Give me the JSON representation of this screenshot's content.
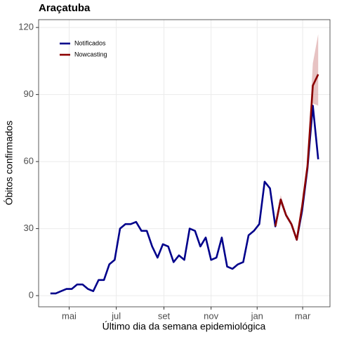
{
  "chart_data": {
    "type": "line",
    "title": "Araçatuba",
    "xlabel": "Último dia da semana epidemiológica",
    "ylabel": "Óbitos confirmados",
    "x": [
      0,
      1,
      2,
      3,
      4,
      5,
      6,
      7,
      8,
      9,
      10,
      11,
      12,
      13,
      14,
      15,
      16,
      17,
      18,
      19,
      20,
      21,
      22,
      23,
      24,
      25,
      26,
      27,
      28,
      29,
      30,
      31,
      32,
      33,
      34,
      35,
      36,
      37,
      38,
      39,
      40,
      41,
      42,
      43,
      44,
      45,
      46,
      47,
      48,
      49,
      50
    ],
    "series": [
      {
        "name": "Notificados",
        "color": "#00008b",
        "values": [
          1,
          1,
          2,
          3,
          3,
          5,
          5,
          3,
          2,
          7,
          7,
          14,
          16,
          30,
          32,
          32,
          33,
          29,
          29,
          22,
          17,
          23,
          22,
          15,
          18,
          16,
          30,
          29,
          22,
          26,
          16,
          17,
          26,
          13,
          12,
          14,
          15,
          27,
          29,
          32,
          51,
          48,
          31,
          43,
          36,
          32,
          25,
          38,
          57,
          85,
          61
        ]
      },
      {
        "name": "Nowcasting",
        "color": "#8b0000",
        "band_color": "#c97a7a",
        "values": [
          null,
          null,
          null,
          null,
          null,
          null,
          null,
          null,
          null,
          null,
          null,
          null,
          null,
          null,
          null,
          null,
          null,
          null,
          null,
          null,
          null,
          null,
          null,
          null,
          null,
          null,
          null,
          null,
          null,
          null,
          null,
          null,
          null,
          null,
          null,
          null,
          null,
          null,
          null,
          null,
          null,
          null,
          31,
          43,
          36,
          32,
          25,
          40,
          58,
          94,
          99
        ],
        "lower": [
          null,
          null,
          null,
          null,
          null,
          null,
          null,
          null,
          null,
          null,
          null,
          null,
          null,
          null,
          null,
          null,
          null,
          null,
          null,
          null,
          null,
          null,
          null,
          null,
          null,
          null,
          null,
          null,
          null,
          null,
          null,
          null,
          null,
          null,
          null,
          null,
          null,
          null,
          null,
          null,
          null,
          null,
          31,
          41,
          35,
          31,
          25,
          39,
          56,
          86,
          85
        ],
        "upper": [
          null,
          null,
          null,
          null,
          null,
          null,
          null,
          null,
          null,
          null,
          null,
          null,
          null,
          null,
          null,
          null,
          null,
          null,
          null,
          null,
          null,
          null,
          null,
          null,
          null,
          null,
          null,
          null,
          null,
          null,
          null,
          null,
          null,
          null,
          null,
          null,
          null,
          null,
          null,
          null,
          null,
          null,
          31,
          45,
          37,
          33,
          26,
          42,
          61,
          104,
          117
        ]
      }
    ],
    "xlim": [
      -2.2,
      52.2
    ],
    "xticks": [
      {
        "value": 3.5,
        "label": "mai"
      },
      {
        "value": 12.3,
        "label": "jul"
      },
      {
        "value": 21.2,
        "label": "set"
      },
      {
        "value": 30.0,
        "label": "nov"
      },
      {
        "value": 38.6,
        "label": "jan"
      },
      {
        "value": 47.1,
        "label": "mar"
      }
    ],
    "ylim": [
      -5,
      123.5
    ],
    "yticks": [
      0,
      30,
      60,
      90,
      120
    ],
    "grid": true,
    "legend": "top-left"
  }
}
